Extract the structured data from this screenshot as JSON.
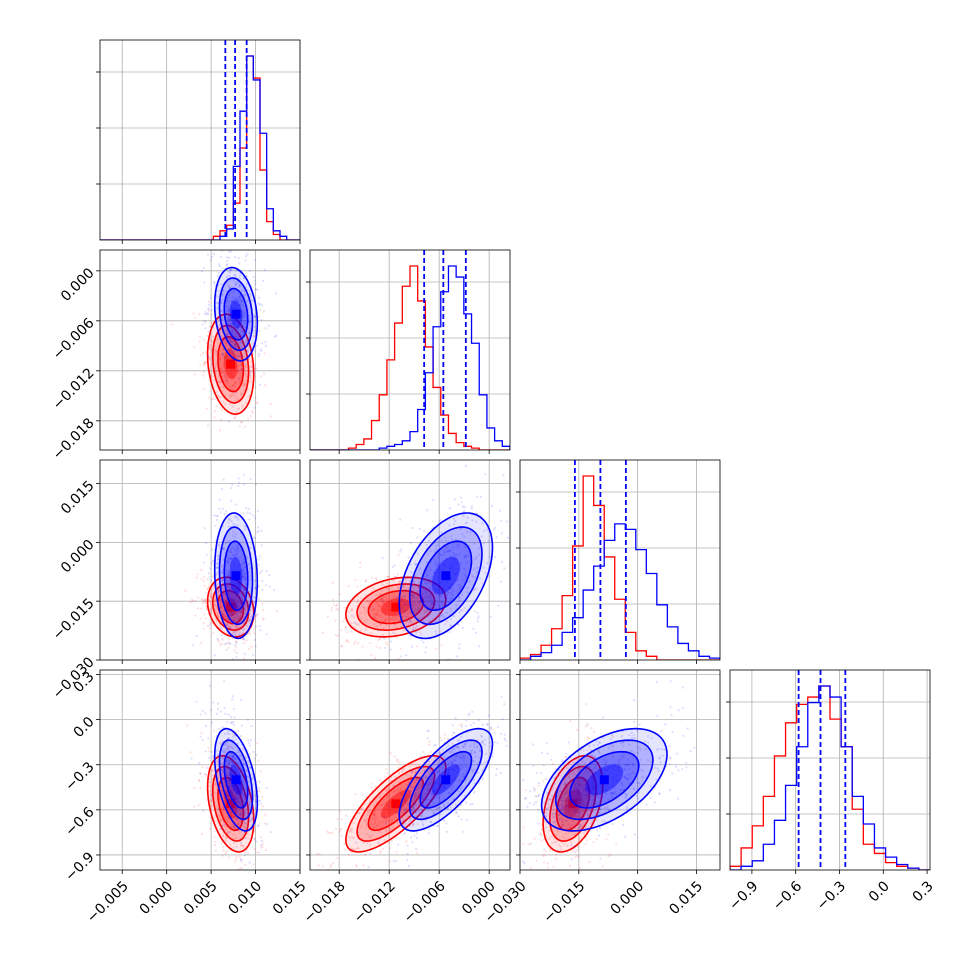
{
  "chart_data": {
    "type": "corner",
    "title": "",
    "grid": true,
    "colors": {
      "blue": "#0000ff",
      "red": "#ff0000",
      "grid": "#b0b0b0"
    },
    "parameters": [
      {
        "xlim": [
          -0.0075,
          0.015
        ],
        "ylim": [
          -0.0215,
          0.0025
        ],
        "ticks": [
          -0.005,
          0.0,
          0.005,
          0.01,
          0.015
        ],
        "tick_labels": [
          "−0.005",
          "0.000",
          "0.005",
          "0.010",
          "0.015"
        ]
      },
      {
        "xlim": [
          -0.0215,
          0.0025
        ],
        "ylim": [
          -0.0215,
          0.0025
        ],
        "ticks": [
          -0.018,
          -0.012,
          -0.006,
          0.0
        ],
        "tick_labels": [
          "−0.018",
          "−0.012",
          "−0.006",
          "0.000"
        ]
      },
      {
        "xlim": [
          -0.03,
          0.021
        ],
        "ylim": [
          -0.03,
          0.021
        ],
        "ticks": [
          -0.03,
          -0.015,
          0.0,
          0.015
        ],
        "tick_labels": [
          "−0.030",
          "−0.015",
          "0.000",
          "0.015"
        ]
      },
      {
        "xlim": [
          -1.05,
          0.32
        ],
        "ylim": [
          -1.0,
          0.33
        ],
        "ticks": [
          -0.9,
          -0.6,
          -0.3,
          0.0,
          0.3
        ],
        "tick_labels": [
          "−0.9",
          "−0.6",
          "−0.3",
          "0.0",
          "0.3"
        ]
      }
    ],
    "series": [
      {
        "color": "blue",
        "mean": [
          0.0078,
          -0.0052,
          -0.0085,
          -0.4
        ],
        "std": [
          0.0012,
          0.0028,
          0.008,
          0.17
        ],
        "corr": {
          "1_0": -0.2,
          "2_0": -0.1,
          "3_0": -0.45,
          "2_1": 0.45,
          "3_1": 0.7,
          "3_2": 0.5
        }
      },
      {
        "color": "red",
        "mean": [
          0.0072,
          -0.0112,
          -0.0165,
          -0.56
        ],
        "std": [
          0.0013,
          0.003,
          0.0038,
          0.16
        ],
        "corr": {
          "1_0": -0.2,
          "2_0": -0.2,
          "3_0": -0.35,
          "2_1": 0.25,
          "3_1": 0.75,
          "3_2": 0.4
        }
      }
    ],
    "quantile_lines": [
      [
        0.0066,
        0.0077,
        0.009
      ],
      [
        -0.0078,
        -0.0055,
        -0.0028
      ],
      [
        -0.016,
        -0.0095,
        -0.003
      ],
      [
        -0.58,
        -0.43,
        -0.26
      ]
    ],
    "histograms": [
      {
        "edges": [
          -0.0075,
          0.015
        ],
        "blue": [
          0,
          0,
          0,
          0,
          0,
          0,
          0,
          0,
          0,
          0,
          0,
          0,
          0,
          0,
          0,
          0,
          0,
          0,
          2,
          6,
          40,
          70,
          100,
          87,
          58,
          17,
          5,
          2,
          0,
          0
        ],
        "red": [
          0,
          0,
          0,
          0,
          0,
          0,
          0,
          0,
          0,
          0,
          0,
          0,
          0,
          0,
          0,
          0,
          0,
          2,
          5,
          8,
          20,
          50,
          100,
          88,
          38,
          10,
          3,
          0,
          0,
          0
        ]
      },
      {
        "edges": [
          -0.0215,
          0.0025
        ],
        "blue": [
          0,
          0,
          0,
          0,
          0,
          0,
          0,
          0,
          0,
          1,
          2,
          3,
          5,
          10,
          22,
          42,
          67,
          86,
          100,
          94,
          74,
          58,
          30,
          12,
          5,
          2
        ],
        "red": [
          0,
          0,
          0,
          0,
          0,
          1,
          3,
          6,
          16,
          30,
          49,
          69,
          89,
          100,
          81,
          56,
          34,
          19,
          9,
          4,
          2,
          1,
          0,
          0,
          0,
          0
        ]
      },
      {
        "edges": [
          -0.03,
          0.021
        ],
        "blue": [
          0,
          2,
          4,
          8,
          15,
          23,
          38,
          51,
          65,
          74,
          71,
          60,
          47,
          30,
          18,
          9,
          5,
          2,
          1
        ],
        "red": [
          1,
          3,
          8,
          17,
          35,
          62,
          100,
          84,
          56,
          33,
          15,
          5,
          2,
          0,
          0,
          0,
          0,
          0,
          0
        ]
      },
      {
        "edges": [
          -1.05,
          0.32
        ],
        "blue": [
          0,
          2,
          5,
          14,
          27,
          46,
          67,
          91,
          100,
          94,
          67,
          40,
          25,
          12,
          7,
          3,
          1,
          0
        ],
        "red": [
          2,
          12,
          24,
          40,
          62,
          80,
          90,
          94,
          100,
          82,
          67,
          33,
          14,
          9,
          4,
          2,
          1,
          0
        ]
      }
    ]
  }
}
